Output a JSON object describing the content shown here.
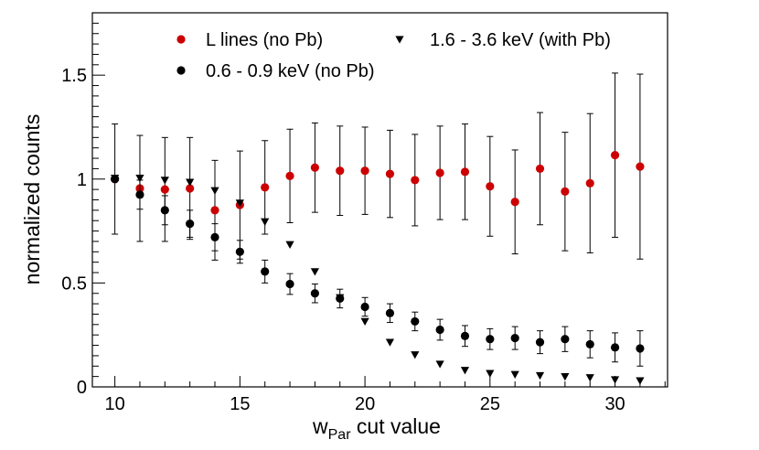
{
  "chart_data": {
    "type": "scatter",
    "xlabel": "w",
    "xlabel_subscript": "Par",
    "xlabel_suffix": " cut value",
    "ylabel": "normalized counts",
    "xlim": [
      9.1,
      32.1
    ],
    "ylim": [
      0,
      1.8
    ],
    "x_ticks": [
      10,
      15,
      20,
      25,
      30
    ],
    "x_tick_labels": [
      "10",
      "15",
      "20",
      "25",
      "30"
    ],
    "y_ticks": [
      0,
      0.5,
      1,
      1.5
    ],
    "y_tick_labels": [
      "0",
      "0.5",
      "1",
      "1.5"
    ],
    "legend_position": "top",
    "series": [
      {
        "name": "L lines (no Pb)",
        "marker": "circle",
        "color": "#cc0000",
        "points": [
          {
            "x": 10,
            "y": 1.0,
            "err": 0.265
          },
          {
            "x": 11,
            "y": 0.955,
            "err": 0.255
          },
          {
            "x": 12,
            "y": 0.95,
            "err": 0.25
          },
          {
            "x": 13,
            "y": 0.955,
            "err": 0.245
          },
          {
            "x": 14,
            "y": 0.85,
            "err": 0.24
          },
          {
            "x": 15,
            "y": 0.875,
            "err": 0.26
          },
          {
            "x": 16,
            "y": 0.96,
            "err": 0.225
          },
          {
            "x": 17,
            "y": 1.015,
            "err": 0.225
          },
          {
            "x": 18,
            "y": 1.055,
            "err": 0.215
          },
          {
            "x": 19,
            "y": 1.04,
            "err": 0.215
          },
          {
            "x": 20,
            "y": 1.04,
            "err": 0.21
          },
          {
            "x": 21,
            "y": 1.025,
            "err": 0.21
          },
          {
            "x": 22,
            "y": 0.995,
            "err": 0.22
          },
          {
            "x": 23,
            "y": 1.03,
            "err": 0.225
          },
          {
            "x": 24,
            "y": 1.035,
            "err": 0.23
          },
          {
            "x": 25,
            "y": 0.965,
            "err": 0.24
          },
          {
            "x": 26,
            "y": 0.89,
            "err": 0.25
          },
          {
            "x": 27,
            "y": 1.05,
            "err": 0.27
          },
          {
            "x": 28,
            "y": 0.94,
            "err": 0.285
          },
          {
            "x": 29,
            "y": 0.98,
            "err": 0.335
          },
          {
            "x": 30,
            "y": 1.115,
            "err": 0.395
          },
          {
            "x": 31,
            "y": 1.06,
            "err": 0.445
          }
        ]
      },
      {
        "name": "1.6 - 3.6 keV (with Pb)",
        "marker": "triangle-down",
        "color": "#000000",
        "points": [
          {
            "x": 10,
            "y": 1.005
          },
          {
            "x": 11,
            "y": 1.005
          },
          {
            "x": 12,
            "y": 0.995
          },
          {
            "x": 13,
            "y": 0.985
          },
          {
            "x": 14,
            "y": 0.945
          },
          {
            "x": 15,
            "y": 0.885
          },
          {
            "x": 16,
            "y": 0.795
          },
          {
            "x": 17,
            "y": 0.685
          },
          {
            "x": 18,
            "y": 0.555
          },
          {
            "x": 19,
            "y": 0.43
          },
          {
            "x": 20,
            "y": 0.315
          },
          {
            "x": 21,
            "y": 0.215
          },
          {
            "x": 22,
            "y": 0.155
          },
          {
            "x": 23,
            "y": 0.11
          },
          {
            "x": 24,
            "y": 0.08
          },
          {
            "x": 25,
            "y": 0.065
          },
          {
            "x": 26,
            "y": 0.06
          },
          {
            "x": 27,
            "y": 0.055
          },
          {
            "x": 28,
            "y": 0.05
          },
          {
            "x": 29,
            "y": 0.045
          },
          {
            "x": 30,
            "y": 0.035
          },
          {
            "x": 31,
            "y": 0.03
          }
        ]
      },
      {
        "name": "0.6 - 0.9 keV (no Pb)",
        "marker": "circle",
        "color": "#000000",
        "points": [
          {
            "x": 10,
            "y": 1.0,
            "err": 0.0
          },
          {
            "x": 11,
            "y": 0.925,
            "err": 0.07
          },
          {
            "x": 12,
            "y": 0.85,
            "err": 0.07
          },
          {
            "x": 13,
            "y": 0.785,
            "err": 0.065
          },
          {
            "x": 14,
            "y": 0.72,
            "err": 0.065
          },
          {
            "x": 15,
            "y": 0.65,
            "err": 0.055
          },
          {
            "x": 16,
            "y": 0.555,
            "err": 0.055
          },
          {
            "x": 17,
            "y": 0.495,
            "err": 0.05
          },
          {
            "x": 18,
            "y": 0.45,
            "err": 0.045
          },
          {
            "x": 19,
            "y": 0.425,
            "err": 0.045
          },
          {
            "x": 20,
            "y": 0.385,
            "err": 0.045
          },
          {
            "x": 21,
            "y": 0.355,
            "err": 0.045
          },
          {
            "x": 22,
            "y": 0.315,
            "err": 0.045
          },
          {
            "x": 23,
            "y": 0.275,
            "err": 0.05
          },
          {
            "x": 24,
            "y": 0.245,
            "err": 0.05
          },
          {
            "x": 25,
            "y": 0.23,
            "err": 0.05
          },
          {
            "x": 26,
            "y": 0.235,
            "err": 0.055
          },
          {
            "x": 27,
            "y": 0.215,
            "err": 0.055
          },
          {
            "x": 28,
            "y": 0.23,
            "err": 0.06
          },
          {
            "x": 29,
            "y": 0.205,
            "err": 0.065
          },
          {
            "x": 30,
            "y": 0.19,
            "err": 0.07
          },
          {
            "x": 31,
            "y": 0.185,
            "err": 0.085
          }
        ]
      }
    ]
  }
}
